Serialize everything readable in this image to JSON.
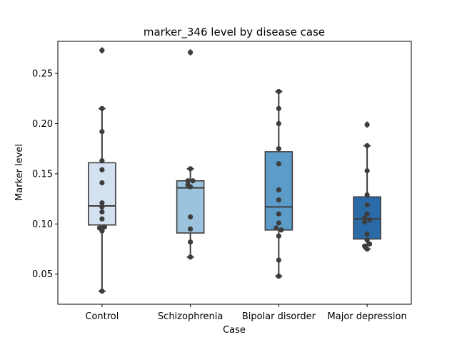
{
  "chart_data": {
    "type": "box",
    "title": "marker_346 level by disease case",
    "xlabel": "Case",
    "ylabel": "Marker level",
    "categories": [
      "Control",
      "Schizophrenia",
      "Bipolar disorder",
      "Major depression"
    ],
    "ylim": [
      0.02,
      0.282
    ],
    "yticks": [
      0.05,
      0.1,
      0.15,
      0.2,
      0.25
    ],
    "ytick_labels": [
      "0.05",
      "0.10",
      "0.15",
      "0.20",
      "0.25"
    ],
    "grid": false,
    "colors": [
      "#d3e1f1",
      "#9cc3dd",
      "#5b9cc9",
      "#2a6aa7"
    ],
    "boxes": [
      {
        "q1": 0.099,
        "median": 0.118,
        "q3": 0.161,
        "whisker_low": 0.033,
        "whisker_high": 0.215,
        "outliers": [
          0.273
        ]
      },
      {
        "q1": 0.091,
        "median": 0.136,
        "q3": 0.143,
        "whisker_low": 0.067,
        "whisker_high": 0.155,
        "outliers": [
          0.271
        ]
      },
      {
        "q1": 0.094,
        "median": 0.117,
        "q3": 0.172,
        "whisker_low": 0.048,
        "whisker_high": 0.232,
        "outliers": []
      },
      {
        "q1": 0.085,
        "median": 0.105,
        "q3": 0.127,
        "whisker_low": 0.075,
        "whisker_high": 0.178,
        "outliers": [
          0.199
        ]
      }
    ],
    "points": [
      [
        [
          0.273,
          0
        ],
        [
          0.215,
          0
        ],
        [
          0.192,
          0
        ],
        [
          0.163,
          0
        ],
        [
          0.154,
          0
        ],
        [
          0.141,
          0
        ],
        [
          0.121,
          0
        ],
        [
          0.117,
          0
        ],
        [
          0.112,
          0
        ],
        [
          0.105,
          0
        ],
        [
          0.097,
          1
        ],
        [
          0.096,
          -1
        ],
        [
          0.093,
          0
        ],
        [
          0.033,
          0
        ]
      ],
      [
        [
          0.271,
          0
        ],
        [
          0.155,
          0
        ],
        [
          0.143,
          -1
        ],
        [
          0.143,
          1
        ],
        [
          0.139,
          -1
        ],
        [
          0.137,
          0
        ],
        [
          0.107,
          0
        ],
        [
          0.095,
          0
        ],
        [
          0.082,
          0
        ],
        [
          0.067,
          0
        ]
      ],
      [
        [
          0.232,
          0
        ],
        [
          0.215,
          0
        ],
        [
          0.2,
          0
        ],
        [
          0.175,
          0
        ],
        [
          0.16,
          0
        ],
        [
          0.134,
          0
        ],
        [
          0.124,
          0
        ],
        [
          0.11,
          0
        ],
        [
          0.101,
          0
        ],
        [
          0.096,
          -1
        ],
        [
          0.094,
          1
        ],
        [
          0.088,
          0
        ],
        [
          0.064,
          0
        ],
        [
          0.048,
          0
        ]
      ],
      [
        [
          0.199,
          0
        ],
        [
          0.178,
          0
        ],
        [
          0.153,
          0
        ],
        [
          0.129,
          0
        ],
        [
          0.119,
          0
        ],
        [
          0.11,
          0
        ],
        [
          0.106,
          -1
        ],
        [
          0.104,
          1
        ],
        [
          0.102,
          -1
        ],
        [
          0.09,
          0
        ],
        [
          0.084,
          0
        ],
        [
          0.08,
          1
        ],
        [
          0.078,
          -1
        ],
        [
          0.075,
          0
        ]
      ]
    ]
  }
}
